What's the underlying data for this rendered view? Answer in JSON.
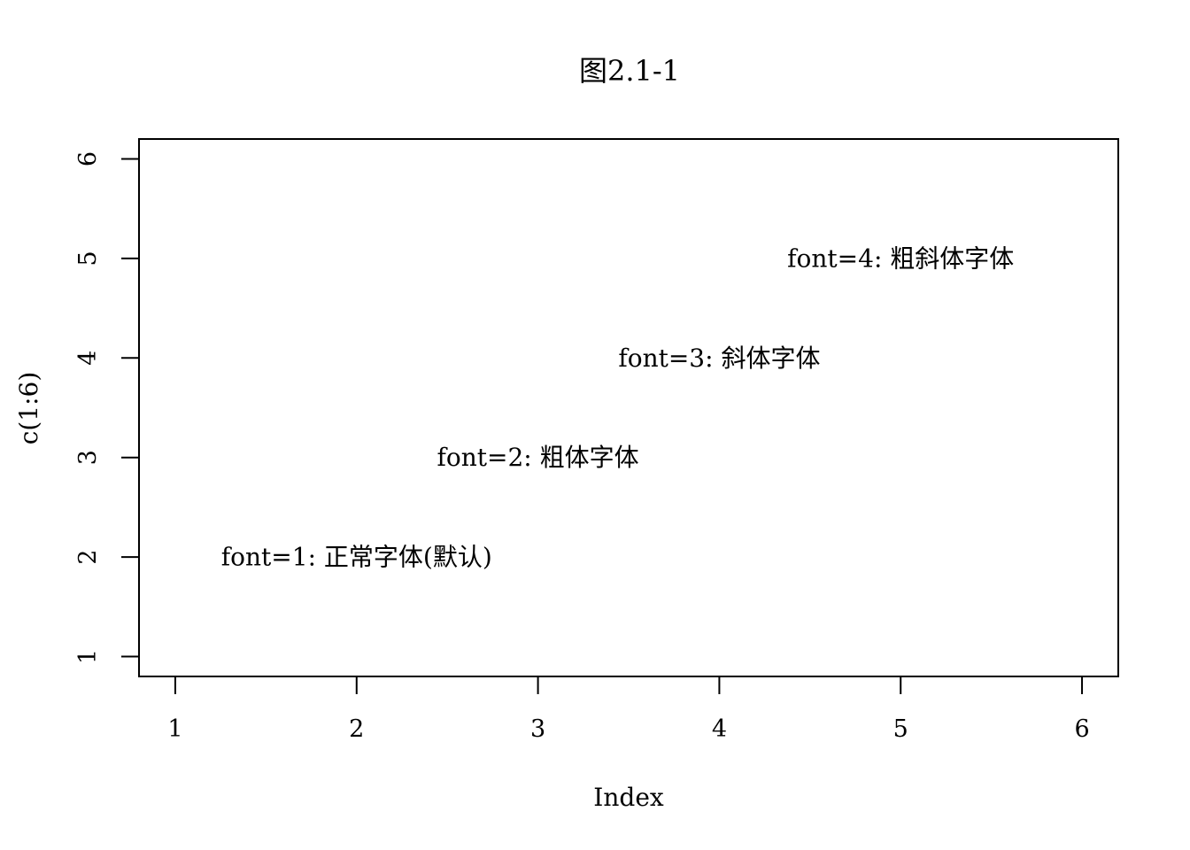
{
  "chart_data": {
    "type": "scatter",
    "title": "图2.1-1",
    "xlabel": "Index",
    "ylabel": "c(1:6)",
    "xlim": [
      0.8,
      6.2
    ],
    "ylim": [
      0.8,
      6.2
    ],
    "x_ticks": [
      1,
      2,
      3,
      4,
      5,
      6
    ],
    "y_ticks": [
      1,
      2,
      3,
      4,
      5,
      6
    ],
    "x_tick_labels": [
      "1",
      "2",
      "3",
      "4",
      "5",
      "6"
    ],
    "y_tick_labels": [
      "1",
      "2",
      "3",
      "4",
      "5",
      "6"
    ],
    "grid": false,
    "points": [],
    "annotations": [
      {
        "x": 2,
        "y": 2,
        "text": "font=1: 正常字体(默认)",
        "font": 1
      },
      {
        "x": 3,
        "y": 3,
        "text": "font=2: 粗体字体",
        "font": 2
      },
      {
        "x": 4,
        "y": 4,
        "text": "font=3: 斜体字体",
        "font": 3
      },
      {
        "x": 5,
        "y": 5,
        "text": "font=4: 粗斜体字体",
        "font": 4
      }
    ]
  }
}
